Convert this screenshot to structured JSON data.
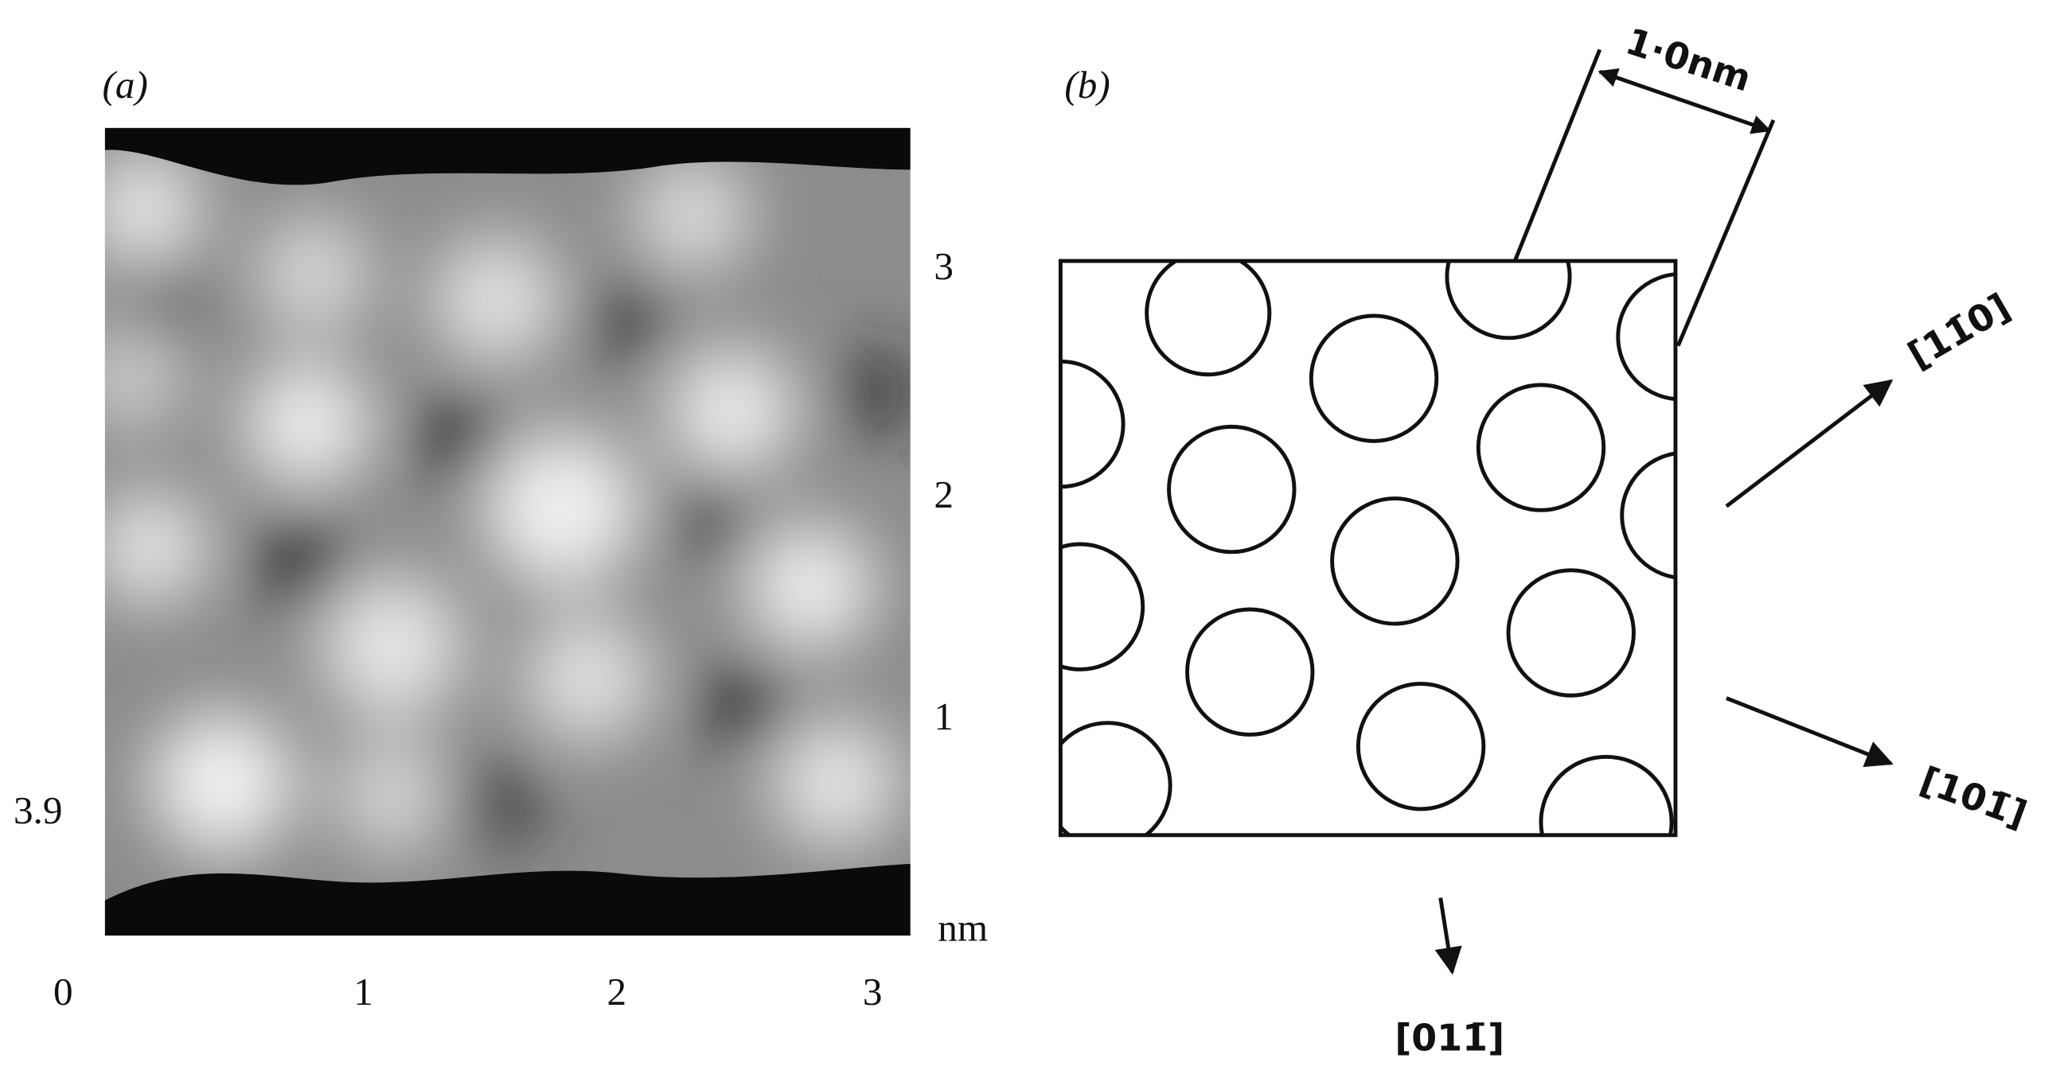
{
  "panel_a": {
    "label": "(a)",
    "x_ticks": [
      "0",
      "1",
      "2",
      "3"
    ],
    "y_ticks": [
      "3",
      "2",
      "1"
    ],
    "unit": "nm",
    "side_label": "3.9"
  },
  "panel_b": {
    "label": "(b)",
    "scale": "1·0nm",
    "directions": [
      "[11̄0]",
      "[101̄]",
      "[011̄]"
    ]
  }
}
